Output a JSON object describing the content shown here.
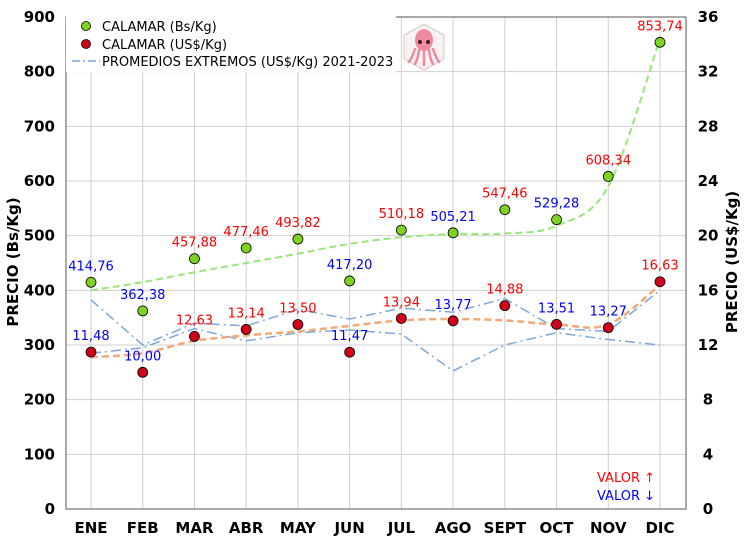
{
  "chart_data": {
    "type": "line",
    "categories": [
      "ENE",
      "FEB",
      "MAR",
      "ABR",
      "MAY",
      "JUN",
      "JUL",
      "AGO",
      "SEPT",
      "OCT",
      "NOV",
      "DIC"
    ],
    "y_left": {
      "label": "PRECIO (Bs/Kg)",
      "lim": [
        0,
        900
      ],
      "ticks": [
        0,
        100,
        200,
        300,
        400,
        500,
        600,
        700,
        800,
        900
      ]
    },
    "y_right": {
      "label": "PRECIO (US$/Kg)",
      "lim": [
        0,
        36
      ],
      "ticks": [
        0,
        4,
        8,
        12,
        16,
        20,
        24,
        28,
        32,
        36
      ]
    },
    "grid": true,
    "legend_position": "top-left",
    "series": [
      {
        "name": "CALAMAR (Bs/Kg)",
        "axis": "left",
        "color": "#7ed321",
        "values": [
          414.76,
          362.38,
          457.88,
          477.46,
          493.82,
          417.2,
          510.18,
          505.21,
          547.46,
          529.28,
          608.34,
          853.74
        ],
        "labels": [
          "414,76",
          "362,38",
          "457,88",
          "477,46",
          "493,82",
          "417,20",
          "510,18",
          "505,21",
          "547,46",
          "529,28",
          "608,34",
          "853,74"
        ],
        "label_colors": [
          "#0000ff",
          "#0000ff",
          "#ff0000",
          "#ff0000",
          "#ff0000",
          "#0000ff",
          "#ff0000",
          "#0000ff",
          "#ff0000",
          "#0000ff",
          "#ff0000",
          "#ff0000"
        ],
        "trend_color": "#99e67a",
        "trend": [
          400,
          415,
          433,
          450,
          467,
          485,
          497,
          503,
          504,
          518,
          590,
          860
        ]
      },
      {
        "name": "CALAMAR (US$/Kg)",
        "axis": "right",
        "color": "#d0021b",
        "values": [
          11.48,
          10.0,
          12.63,
          13.14,
          13.5,
          11.47,
          13.94,
          13.77,
          14.88,
          13.51,
          13.27,
          16.63
        ],
        "labels": [
          "11,48",
          "10,00",
          "12,63",
          "13,14",
          "13,50",
          "11,47",
          "13,94",
          "13,77",
          "14,88",
          "13,51",
          "13,27",
          "16,63"
        ],
        "label_colors": [
          "#0000ff",
          "#0000ff",
          "#ff0000",
          "#ff0000",
          "#ff0000",
          "#0000ff",
          "#ff0000",
          "#0000ff",
          "#ff0000",
          "#0000ff",
          "#0000ff",
          "#ff0000"
        ],
        "trend_color": "#f2a97a",
        "trend": [
          11.1,
          11.4,
          12.3,
          12.7,
          13.0,
          13.4,
          13.8,
          13.9,
          13.8,
          13.5,
          13.5,
          16.4
        ]
      },
      {
        "name": "PROMEDIOS EXTREMOS (US$/Kg) 2021-2023",
        "axis": "right",
        "color": "#7fa7d8",
        "upper": [
          15.3,
          12.0,
          13.6,
          13.4,
          14.6,
          13.9,
          14.7,
          14.4,
          15.4,
          13.2,
          13.0,
          16.0
        ],
        "lower": [
          11.4,
          11.8,
          13.2,
          12.3,
          12.9,
          13.1,
          12.8,
          10.1,
          12.0,
          12.9,
          12.4,
          12.0
        ]
      }
    ],
    "annotations": [
      {
        "text": "VALOR ↑",
        "color": "#ff0000"
      },
      {
        "text": "VALOR ↓",
        "color": "#0000ff"
      }
    ]
  }
}
